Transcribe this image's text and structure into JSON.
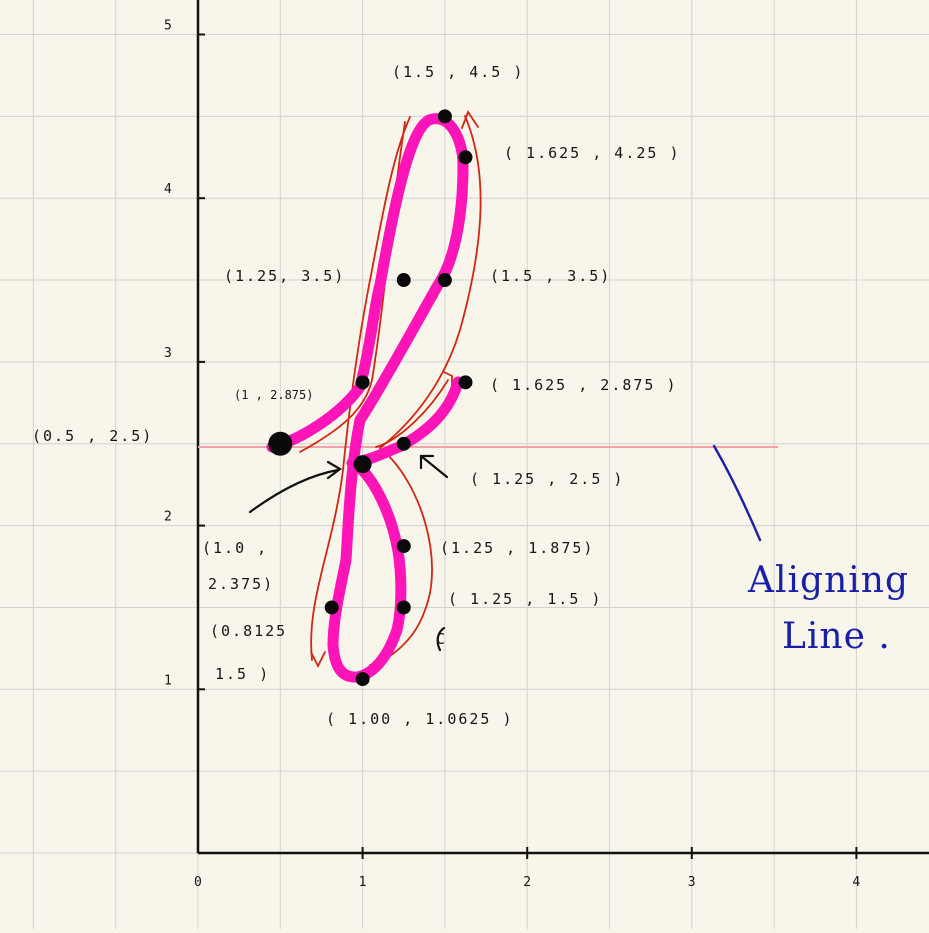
{
  "figure": {
    "x_ticks": [
      "0",
      "1",
      "2",
      "3",
      "4"
    ],
    "y_ticks": [
      "1",
      "2",
      "3",
      "4",
      "5"
    ],
    "labels": {
      "l15_45": "(1.5 , 4.5 )",
      "l1625_425": "( 1.625 , 4.25 )",
      "l125_35": "(1.25, 3.5)",
      "l15_35": "(1.5 , 3.5)",
      "l1_2875": "(1 , 2.875)",
      "l1625_2875": "( 1.625 , 2.875 )",
      "l05_25": "(0.5 , 2.5)",
      "l125_25": "( 1.25 , 2.5 )",
      "l10_2375_a": "(1.0 ,",
      "l10_2375_b": "2.375)",
      "l125_1875": "(1.25 , 1.875)",
      "l125_15": "( 1.25 , 1.5 )",
      "l08125_a": "(0.8125",
      "l08125_b": "1.5 )",
      "lc": "C",
      "l100_10625": "( 1.00 , 1.0625 )"
    },
    "aligning_line_note": [
      "Aligning",
      "Line ."
    ],
    "colors": {
      "background": "#f8f5ea",
      "grid": "#d2d2d2",
      "axis": "#111111",
      "stroke_letter": "#ff14b8",
      "guide": "#d32614",
      "aligning_line": "#f4a2a8",
      "note": "#1a1fa8"
    }
  },
  "chart_data": {
    "type": "scatter",
    "xlim": [
      0,
      4.5
    ],
    "ylim": [
      0,
      5.2
    ],
    "grid": true,
    "points": [
      {
        "x": 0.5,
        "y": 2.5
      },
      {
        "x": 1.0,
        "y": 2.875
      },
      {
        "x": 1.25,
        "y": 3.5
      },
      {
        "x": 1.5,
        "y": 4.5
      },
      {
        "x": 1.625,
        "y": 4.25
      },
      {
        "x": 1.5,
        "y": 3.5
      },
      {
        "x": 1.625,
        "y": 2.875
      },
      {
        "x": 1.25,
        "y": 2.5
      },
      {
        "x": 1.0,
        "y": 2.375
      },
      {
        "x": 1.25,
        "y": 1.875
      },
      {
        "x": 1.25,
        "y": 1.5
      },
      {
        "x": 0.8125,
        "y": 1.5
      },
      {
        "x": 1.0,
        "y": 1.0625
      }
    ],
    "aligning_line_y": 2.5
  }
}
